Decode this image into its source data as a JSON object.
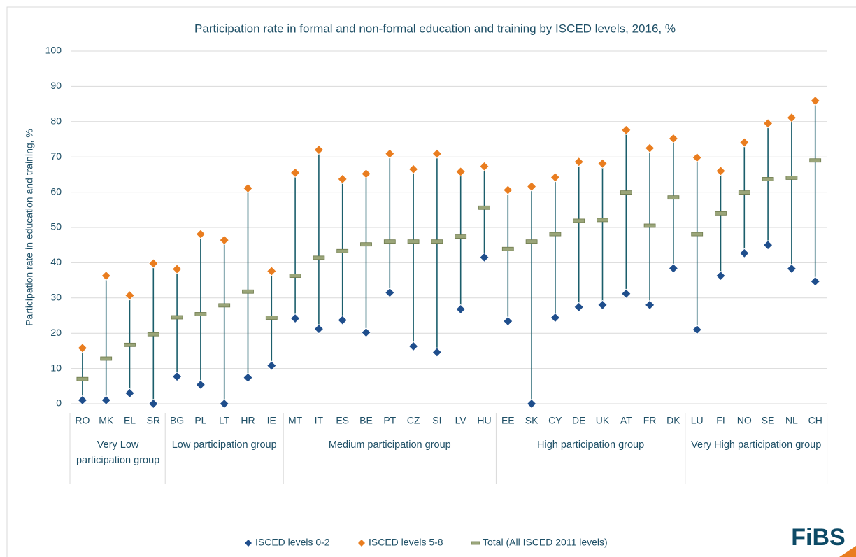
{
  "chart_data": {
    "type": "range",
    "title": "Participation rate in formal and non-formal education and training by ISCED levels, 2016, %",
    "y_label": "Participation rate in education and training, %",
    "categories": [
      "RO",
      "MK",
      "EL",
      "SR",
      "BG",
      "PL",
      "LT",
      "HR",
      "IE",
      "MT",
      "IT",
      "ES",
      "BE",
      "PT",
      "CZ",
      "SI",
      "LV",
      "HU",
      "EE",
      "SK",
      "CY",
      "DE",
      "UK",
      "AT",
      "FR",
      "DK",
      "LU",
      "FI",
      "NO",
      "SE",
      "NL",
      "CH"
    ],
    "groups": [
      {
        "label": "Very Low participation group",
        "count": 4
      },
      {
        "label": "Low participation group",
        "count": 5
      },
      {
        "label": "Medium participation group",
        "count": 9
      },
      {
        "label": "High participation group",
        "count": 8
      },
      {
        "label": "Very High participation group",
        "count": 6
      }
    ],
    "series": [
      {
        "name": "ISCED levels 0-2",
        "color": "#1f4e8c",
        "marker": "diamond",
        "values": [
          1,
          1,
          3,
          0,
          7.7,
          5.4,
          0,
          7.4,
          10.8,
          24.2,
          21.2,
          23.7,
          20.2,
          31.5,
          16.3,
          14.6,
          26.8,
          41.5,
          23.4,
          0,
          24.4,
          27.4,
          28,
          31.2,
          28,
          38.4,
          21,
          36.3,
          42.7,
          45,
          38.3,
          34.7
        ]
      },
      {
        "name": "ISCED levels 5-8",
        "color": "#e97d1f",
        "marker": "diamond",
        "values": [
          15.8,
          36.3,
          30.7,
          39.8,
          38.2,
          48.1,
          46.4,
          61.1,
          37.6,
          65.5,
          72,
          63.7,
          65.2,
          70.9,
          66.5,
          70.9,
          65.8,
          67.3,
          60.6,
          61.6,
          64.2,
          68.6,
          68.1,
          77.6,
          72.5,
          75.2,
          69.8,
          66,
          74.1,
          79.5,
          81.1,
          85.9
        ]
      },
      {
        "name": "Total (All ISCED 2011 levels)",
        "color": "#9aa579",
        "marker": "dash",
        "values": [
          7,
          12.8,
          16.7,
          19.7,
          24.5,
          25.4,
          27.9,
          31.8,
          24.4,
          36.3,
          41.4,
          43.3,
          45.2,
          46,
          46,
          46,
          47.4,
          55.6,
          43.9,
          46,
          48.1,
          51.9,
          52.1,
          59.9,
          50.5,
          58.5,
          48.1,
          54,
          59.9,
          63.7,
          64.1,
          69
        ]
      }
    ],
    "range_color": "#1b5e6b",
    "ylim": [
      0,
      100
    ],
    "yticks": [
      0,
      10,
      20,
      30,
      40,
      50,
      60,
      70,
      80,
      90,
      100
    ],
    "grid": true,
    "legend": "bottom",
    "logo": "FiBS"
  }
}
